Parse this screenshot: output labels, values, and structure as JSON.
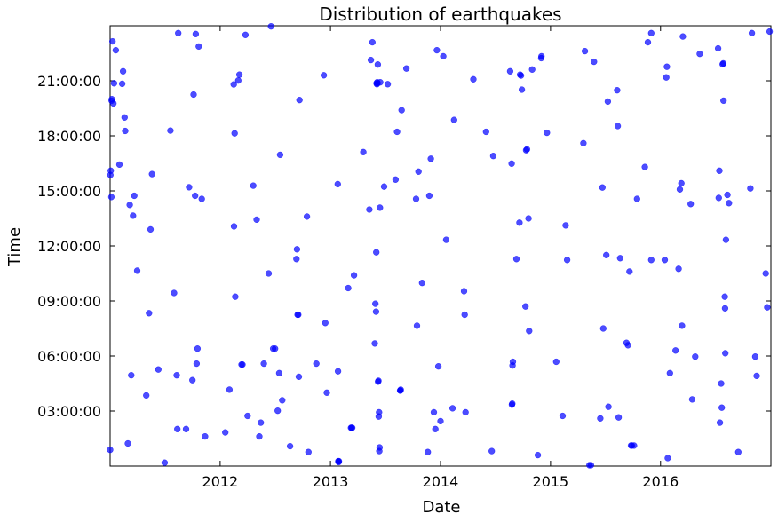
{
  "chart_data": {
    "type": "scatter",
    "title": "Distribution of earthquakes",
    "xlabel": "Date",
    "ylabel": "Time",
    "x_scale": "date",
    "xlim": [
      "2011-01-01",
      "2016-12-31"
    ],
    "ylim": [
      "00:00:00",
      "23:59:59"
    ],
    "x_ticks": [
      "2012",
      "2013",
      "2014",
      "2015",
      "2016"
    ],
    "y_ticks": [
      "03:00:00",
      "06:00:00",
      "09:00:00",
      "12:00:00",
      "15:00:00",
      "18:00:00",
      "21:00:00"
    ],
    "grid": false,
    "legend": "none",
    "marker_color": "#0000ff",
    "points": [
      {
        "x": "2011-01-01",
        "y": "00:53"
      },
      {
        "x": "2011-01-02",
        "y": "15:52"
      },
      {
        "x": "2011-01-03",
        "y": "16:06"
      },
      {
        "x": "2011-01-05",
        "y": "14:40"
      },
      {
        "x": "2011-01-06",
        "y": "19:55"
      },
      {
        "x": "2011-01-07",
        "y": "20:00"
      },
      {
        "x": "2011-01-09",
        "y": "23:09"
      },
      {
        "x": "2011-01-12",
        "y": "19:46"
      },
      {
        "x": "2011-01-14",
        "y": "20:52"
      },
      {
        "x": "2011-01-20",
        "y": "22:40"
      },
      {
        "x": "2011-02-01",
        "y": "16:26"
      },
      {
        "x": "2011-02-10",
        "y": "20:50"
      },
      {
        "x": "2011-02-13",
        "y": "21:31"
      },
      {
        "x": "2011-02-18",
        "y": "19:00"
      },
      {
        "x": "2011-02-20",
        "y": "18:16"
      },
      {
        "x": "2011-03-01",
        "y": "01:14"
      },
      {
        "x": "2011-03-07",
        "y": "14:14"
      },
      {
        "x": "2011-03-12",
        "y": "04:57"
      },
      {
        "x": "2011-03-18",
        "y": "13:39"
      },
      {
        "x": "2011-03-22",
        "y": "14:44"
      },
      {
        "x": "2011-04-01",
        "y": "10:39"
      },
      {
        "x": "2011-05-01",
        "y": "03:51"
      },
      {
        "x": "2011-05-10",
        "y": "08:20"
      },
      {
        "x": "2011-05-15",
        "y": "12:54"
      },
      {
        "x": "2011-05-20",
        "y": "15:55"
      },
      {
        "x": "2011-06-10",
        "y": "05:16"
      },
      {
        "x": "2011-07-01",
        "y": "00:11"
      },
      {
        "x": "2011-07-20",
        "y": "18:17"
      },
      {
        "x": "2011-08-01",
        "y": "09:26"
      },
      {
        "x": "2011-08-10",
        "y": "04:57"
      },
      {
        "x": "2011-08-12",
        "y": "02:01"
      },
      {
        "x": "2011-08-15",
        "y": "23:36"
      },
      {
        "x": "2011-09-10",
        "y": "02:01"
      },
      {
        "x": "2011-09-20",
        "y": "15:12"
      },
      {
        "x": "2011-10-01",
        "y": "04:41"
      },
      {
        "x": "2011-10-05",
        "y": "20:15"
      },
      {
        "x": "2011-10-10",
        "y": "14:44"
      },
      {
        "x": "2011-10-15",
        "y": "05:35"
      },
      {
        "x": "2011-10-18",
        "y": "06:24"
      },
      {
        "x": "2011-10-22",
        "y": "22:52"
      },
      {
        "x": "2011-11-01",
        "y": "14:34"
      },
      {
        "x": "2011-11-12",
        "y": "01:37"
      },
      {
        "x": "2011-10-12",
        "y": "23:33"
      },
      {
        "x": "2012-01-18",
        "y": "01:50"
      },
      {
        "x": "2012-02-01",
        "y": "04:10"
      },
      {
        "x": "2012-02-15",
        "y": "20:48"
      },
      {
        "x": "2012-02-16",
        "y": "13:04"
      },
      {
        "x": "2012-02-18",
        "y": "18:08"
      },
      {
        "x": "2012-02-20",
        "y": "09:14"
      },
      {
        "x": "2012-03-01",
        "y": "21:01"
      },
      {
        "x": "2012-03-05",
        "y": "21:20"
      },
      {
        "x": "2012-03-12",
        "y": "05:32"
      },
      {
        "x": "2012-03-15",
        "y": "05:32"
      },
      {
        "x": "2012-03-25",
        "y": "23:30"
      },
      {
        "x": "2012-04-01",
        "y": "02:44"
      },
      {
        "x": "2012-04-20",
        "y": "15:17"
      },
      {
        "x": "2012-05-01",
        "y": "13:26"
      },
      {
        "x": "2012-05-10",
        "y": "01:37"
      },
      {
        "x": "2012-05-15",
        "y": "02:22"
      },
      {
        "x": "2012-05-25",
        "y": "05:35"
      },
      {
        "x": "2012-06-10",
        "y": "10:30"
      },
      {
        "x": "2012-06-18",
        "y": "23:58"
      },
      {
        "x": "2012-06-25",
        "y": "06:24"
      },
      {
        "x": "2012-07-01",
        "y": "06:24"
      },
      {
        "x": "2012-07-10",
        "y": "03:01"
      },
      {
        "x": "2012-07-15",
        "y": "05:04"
      },
      {
        "x": "2012-07-18",
        "y": "16:58"
      },
      {
        "x": "2012-07-25",
        "y": "03:35"
      },
      {
        "x": "2012-08-20",
        "y": "01:05"
      },
      {
        "x": "2012-09-10",
        "y": "11:17"
      },
      {
        "x": "2012-09-12",
        "y": "11:49"
      },
      {
        "x": "2012-09-14",
        "y": "08:15"
      },
      {
        "x": "2012-09-16",
        "y": "08:15"
      },
      {
        "x": "2012-09-18",
        "y": "04:52"
      },
      {
        "x": "2012-09-20",
        "y": "19:57"
      },
      {
        "x": "2012-10-15",
        "y": "13:36"
      },
      {
        "x": "2012-10-20",
        "y": "00:46"
      },
      {
        "x": "2012-11-15",
        "y": "05:35"
      },
      {
        "x": "2012-12-10",
        "y": "21:18"
      },
      {
        "x": "2012-12-15",
        "y": "07:48"
      },
      {
        "x": "2012-12-20",
        "y": "04:00"
      },
      {
        "x": "2013-01-25",
        "y": "15:22"
      },
      {
        "x": "2013-01-26",
        "y": "05:10"
      },
      {
        "x": "2013-01-27",
        "y": "00:16"
      },
      {
        "x": "2013-01-28",
        "y": "00:13"
      },
      {
        "x": "2013-01-29",
        "y": "00:16"
      },
      {
        "x": "2013-03-01",
        "y": "09:42"
      },
      {
        "x": "2013-03-10",
        "y": "02:05"
      },
      {
        "x": "2013-03-12",
        "y": "02:05"
      },
      {
        "x": "2013-03-14",
        "y": "02:05"
      },
      {
        "x": "2013-03-20",
        "y": "10:24"
      },
      {
        "x": "2013-04-20",
        "y": "17:07"
      },
      {
        "x": "2013-05-10",
        "y": "13:59"
      },
      {
        "x": "2013-05-15",
        "y": "22:08"
      },
      {
        "x": "2013-05-20",
        "y": "23:06"
      },
      {
        "x": "2013-05-28",
        "y": "06:41"
      },
      {
        "x": "2013-05-30",
        "y": "08:51"
      },
      {
        "x": "2013-06-01",
        "y": "08:25"
      },
      {
        "x": "2013-06-02",
        "y": "11:39"
      },
      {
        "x": "2013-06-03",
        "y": "20:52"
      },
      {
        "x": "2013-06-04",
        "y": "20:49"
      },
      {
        "x": "2013-06-05",
        "y": "20:55"
      },
      {
        "x": "2013-06-06",
        "y": "20:52"
      },
      {
        "x": "2013-06-07",
        "y": "21:53"
      },
      {
        "x": "2013-06-08",
        "y": "04:36"
      },
      {
        "x": "2013-06-09",
        "y": "04:39"
      },
      {
        "x": "2013-06-10",
        "y": "02:42"
      },
      {
        "x": "2013-06-11",
        "y": "02:56"
      },
      {
        "x": "2013-06-12",
        "y": "00:49"
      },
      {
        "x": "2013-06-13",
        "y": "01:01"
      },
      {
        "x": "2013-06-14",
        "y": "14:05"
      },
      {
        "x": "2013-06-15",
        "y": "20:55"
      },
      {
        "x": "2013-06-28",
        "y": "15:14"
      },
      {
        "x": "2013-07-10",
        "y": "20:49"
      },
      {
        "x": "2013-08-05",
        "y": "15:37"
      },
      {
        "x": "2013-08-10",
        "y": "18:13"
      },
      {
        "x": "2013-08-25",
        "y": "19:24"
      },
      {
        "x": "2013-08-20",
        "y": "04:07"
      },
      {
        "x": "2013-08-21",
        "y": "04:07"
      },
      {
        "x": "2013-08-22",
        "y": "04:10"
      },
      {
        "x": "2013-09-10",
        "y": "21:40"
      },
      {
        "x": "2013-10-12",
        "y": "14:34"
      },
      {
        "x": "2013-10-15",
        "y": "07:39"
      },
      {
        "x": "2013-10-20",
        "y": "16:03"
      },
      {
        "x": "2013-11-01",
        "y": "09:59"
      },
      {
        "x": "2013-11-20",
        "y": "00:46"
      },
      {
        "x": "2013-11-25",
        "y": "14:44"
      },
      {
        "x": "2013-11-30",
        "y": "16:45"
      },
      {
        "x": "2013-12-10",
        "y": "02:56"
      },
      {
        "x": "2013-12-15",
        "y": "02:01"
      },
      {
        "x": "2013-12-20",
        "y": "22:40"
      },
      {
        "x": "2013-12-25",
        "y": "05:26"
      },
      {
        "x": "2014-01-01",
        "y": "02:27"
      },
      {
        "x": "2014-01-10",
        "y": "22:20"
      },
      {
        "x": "2014-01-20",
        "y": "12:20"
      },
      {
        "x": "2014-02-10",
        "y": "03:09"
      },
      {
        "x": "2014-02-15",
        "y": "18:52"
      },
      {
        "x": "2014-03-20",
        "y": "09:32"
      },
      {
        "x": "2014-03-22",
        "y": "08:15"
      },
      {
        "x": "2014-03-25",
        "y": "02:56"
      },
      {
        "x": "2014-04-20",
        "y": "21:05"
      },
      {
        "x": "2014-06-01",
        "y": "18:13"
      },
      {
        "x": "2014-06-20",
        "y": "00:49"
      },
      {
        "x": "2014-06-25",
        "y": "16:54"
      },
      {
        "x": "2014-08-20",
        "y": "21:31"
      },
      {
        "x": "2014-08-25",
        "y": "16:29"
      },
      {
        "x": "2014-08-26",
        "y": "03:21"
      },
      {
        "x": "2014-08-27",
        "y": "03:24"
      },
      {
        "x": "2014-08-28",
        "y": "05:29"
      },
      {
        "x": "2014-08-29",
        "y": "05:41"
      },
      {
        "x": "2014-09-10",
        "y": "11:17"
      },
      {
        "x": "2014-09-20",
        "y": "13:16"
      },
      {
        "x": "2014-09-22",
        "y": "21:20"
      },
      {
        "x": "2014-09-25",
        "y": "21:17"
      },
      {
        "x": "2014-09-28",
        "y": "20:31"
      },
      {
        "x": "2014-10-10",
        "y": "08:42"
      },
      {
        "x": "2014-10-12",
        "y": "17:13"
      },
      {
        "x": "2014-10-15",
        "y": "17:16"
      },
      {
        "x": "2014-10-20",
        "y": "13:30"
      },
      {
        "x": "2014-10-22",
        "y": "07:22"
      },
      {
        "x": "2014-11-01",
        "y": "21:37"
      },
      {
        "x": "2014-11-20",
        "y": "00:36"
      },
      {
        "x": "2014-12-01",
        "y": "22:14"
      },
      {
        "x": "2014-12-02",
        "y": "22:20"
      },
      {
        "x": "2014-12-20",
        "y": "18:10"
      },
      {
        "x": "2015-01-20",
        "y": "05:41"
      },
      {
        "x": "2015-02-10",
        "y": "02:44"
      },
      {
        "x": "2015-02-20",
        "y": "13:07"
      },
      {
        "x": "2015-02-25",
        "y": "11:14"
      },
      {
        "x": "2015-04-20",
        "y": "17:36"
      },
      {
        "x": "2015-04-25",
        "y": "22:37"
      },
      {
        "x": "2015-05-10",
        "y": "00:03"
      },
      {
        "x": "2015-05-15",
        "y": "00:03"
      },
      {
        "x": "2015-05-25",
        "y": "22:02"
      },
      {
        "x": "2015-06-15",
        "y": "02:36"
      },
      {
        "x": "2015-06-22",
        "y": "15:11"
      },
      {
        "x": "2015-06-25",
        "y": "07:30"
      },
      {
        "x": "2015-07-05",
        "y": "11:30"
      },
      {
        "x": "2015-07-10",
        "y": "19:52"
      },
      {
        "x": "2015-07-12",
        "y": "03:14"
      },
      {
        "x": "2015-08-10",
        "y": "20:29"
      },
      {
        "x": "2015-08-12",
        "y": "18:32"
      },
      {
        "x": "2015-08-15",
        "y": "02:39"
      },
      {
        "x": "2015-08-20",
        "y": "11:20"
      },
      {
        "x": "2015-09-10",
        "y": "06:43"
      },
      {
        "x": "2015-09-15",
        "y": "06:35"
      },
      {
        "x": "2015-09-20",
        "y": "10:36"
      },
      {
        "x": "2015-09-25",
        "y": "01:07"
      },
      {
        "x": "2015-09-28",
        "y": "01:07"
      },
      {
        "x": "2015-10-05",
        "y": "01:07"
      },
      {
        "x": "2015-10-15",
        "y": "14:34"
      },
      {
        "x": "2015-11-10",
        "y": "16:18"
      },
      {
        "x": "2015-11-20",
        "y": "23:06"
      },
      {
        "x": "2015-12-01",
        "y": "23:36"
      },
      {
        "x": "2015-12-01",
        "y": "11:14"
      },
      {
        "x": "2016-01-15",
        "y": "11:14"
      },
      {
        "x": "2016-01-20",
        "y": "21:11"
      },
      {
        "x": "2016-01-22",
        "y": "21:46"
      },
      {
        "x": "2016-01-25",
        "y": "00:26"
      },
      {
        "x": "2016-02-01",
        "y": "05:04"
      },
      {
        "x": "2016-02-20",
        "y": "06:18"
      },
      {
        "x": "2016-03-01",
        "y": "10:45"
      },
      {
        "x": "2016-03-05",
        "y": "15:05"
      },
      {
        "x": "2016-03-10",
        "y": "15:25"
      },
      {
        "x": "2016-03-12",
        "y": "07:39"
      },
      {
        "x": "2016-03-15",
        "y": "23:25"
      },
      {
        "x": "2016-04-10",
        "y": "14:17"
      },
      {
        "x": "2016-04-15",
        "y": "03:38"
      },
      {
        "x": "2016-04-25",
        "y": "05:58"
      },
      {
        "x": "2016-05-10",
        "y": "22:28"
      },
      {
        "x": "2016-07-10",
        "y": "22:46"
      },
      {
        "x": "2016-07-12",
        "y": "14:37"
      },
      {
        "x": "2016-07-14",
        "y": "16:06"
      },
      {
        "x": "2016-07-16",
        "y": "02:22"
      },
      {
        "x": "2016-07-20",
        "y": "04:30"
      },
      {
        "x": "2016-07-22",
        "y": "03:11"
      },
      {
        "x": "2016-07-25",
        "y": "21:54"
      },
      {
        "x": "2016-07-27",
        "y": "21:57"
      },
      {
        "x": "2016-07-28",
        "y": "19:55"
      },
      {
        "x": "2016-08-01",
        "y": "09:14"
      },
      {
        "x": "2016-08-02",
        "y": "08:36"
      },
      {
        "x": "2016-08-03",
        "y": "06:09"
      },
      {
        "x": "2016-08-05",
        "y": "12:20"
      },
      {
        "x": "2016-08-10",
        "y": "14:47"
      },
      {
        "x": "2016-08-15",
        "y": "14:20"
      },
      {
        "x": "2016-09-15",
        "y": "00:46"
      },
      {
        "x": "2016-10-25",
        "y": "15:08"
      },
      {
        "x": "2016-10-30",
        "y": "23:36"
      },
      {
        "x": "2016-11-10",
        "y": "05:58"
      },
      {
        "x": "2016-11-15",
        "y": "04:55"
      },
      {
        "x": "2016-12-15",
        "y": "10:30"
      },
      {
        "x": "2016-12-20",
        "y": "08:39"
      },
      {
        "x": "2016-12-28",
        "y": "23:41"
      }
    ]
  }
}
